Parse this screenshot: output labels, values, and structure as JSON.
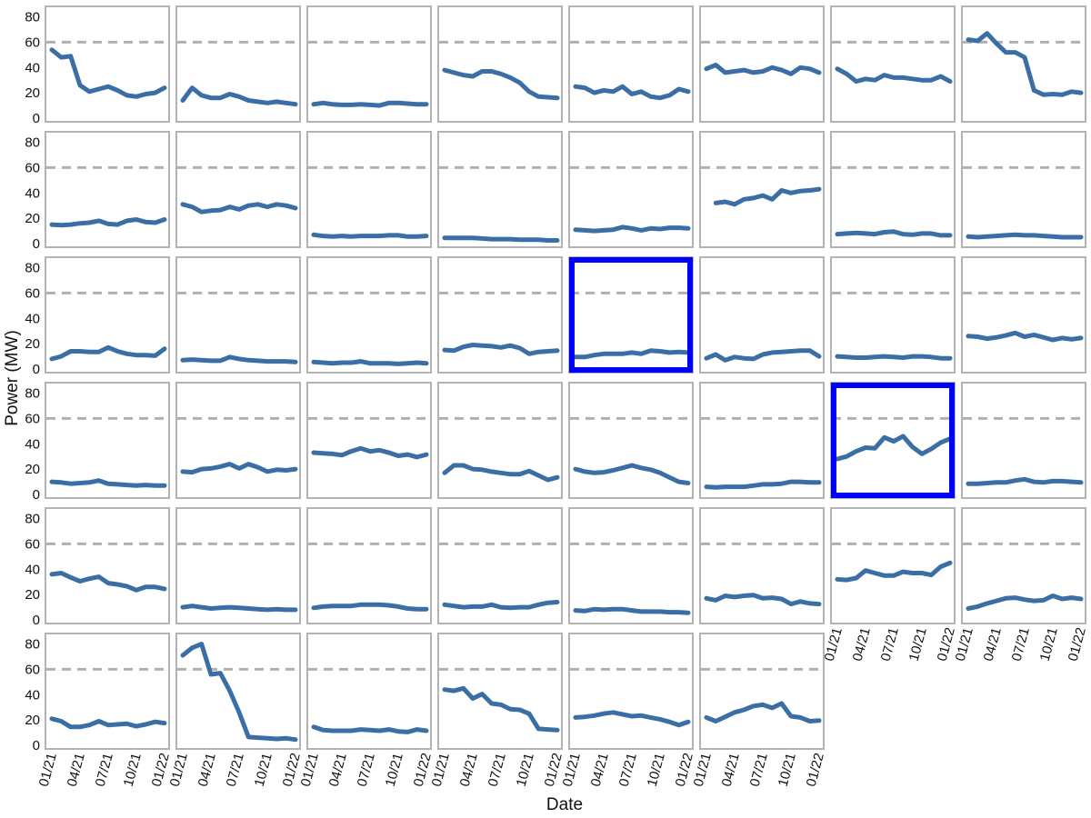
{
  "chart_data": {
    "type": "line",
    "layout": "small-multiples",
    "xlabel": "Date",
    "ylabel": "Power (MW)",
    "x": [
      "01/21",
      "02/21",
      "03/21",
      "04/21",
      "05/21",
      "06/21",
      "07/21",
      "08/21",
      "09/21",
      "10/21",
      "11/21",
      "12/21",
      "01/22"
    ],
    "x_ticks": [
      "01/21",
      "04/21",
      "07/21",
      "10/21",
      "01/22"
    ],
    "y_ticks": [
      0,
      20,
      40,
      60,
      80
    ],
    "ylim": [
      0,
      84
    ],
    "reference_line": {
      "value": 60,
      "style": "dashed",
      "color": "#b0b0b0"
    },
    "colors": {
      "line": "#3a6ea5",
      "panel_border": "#b3b3b3",
      "highlight": "#0000ff"
    },
    "highlighted_panels": [
      20,
      30
    ],
    "panels": [
      [
        54,
        48,
        49,
        26,
        21,
        23,
        25,
        22,
        18,
        17,
        19,
        20,
        24
      ],
      [
        14,
        24,
        18,
        16,
        16,
        19,
        17,
        14,
        13,
        12,
        13,
        12,
        11
      ],
      [
        11,
        12,
        11,
        10.5,
        10.5,
        11,
        10.5,
        10,
        12,
        12,
        11.5,
        11,
        11
      ],
      [
        38,
        36,
        34,
        33,
        37,
        37,
        35,
        32,
        28,
        21,
        17,
        16.5,
        16
      ],
      [
        25,
        24,
        20,
        22,
        21,
        25,
        19,
        21,
        17,
        16,
        18,
        23,
        21
      ],
      [
        39,
        42,
        36,
        37,
        38,
        36,
        37,
        40,
        38,
        35,
        40,
        39,
        36
      ],
      [
        39,
        35,
        29,
        31,
        30,
        34,
        32,
        32,
        31,
        30,
        30,
        33,
        29
      ],
      [
        62,
        61,
        67,
        59,
        52,
        52,
        48,
        22,
        18.5,
        19,
        18.5,
        21,
        20
      ],
      [
        15,
        14.5,
        15,
        16,
        16.5,
        18,
        15.5,
        15,
        18,
        19,
        17,
        16.5,
        19
      ],
      [
        31,
        29,
        25,
        26,
        26.5,
        29,
        27,
        30,
        31,
        29,
        31,
        30,
        28
      ],
      [
        7,
        6,
        5.5,
        6,
        5.5,
        6,
        6,
        6,
        6.5,
        6.5,
        5.5,
        5.5,
        6
      ],
      [
        4.5,
        4.5,
        4.5,
        4.5,
        4,
        3.5,
        3.5,
        3.5,
        3,
        3,
        3,
        2.5,
        2.5
      ],
      [
        11,
        10.5,
        10,
        10.5,
        11,
        13,
        12,
        10.5,
        12,
        11.5,
        12.5,
        12.5,
        12
      ],
      [
        null,
        32,
        33,
        31,
        35,
        36,
        38,
        35,
        42,
        40,
        41.5,
        42,
        43
      ],
      [
        7.5,
        8,
        8.5,
        8,
        7.5,
        9,
        9.5,
        7.5,
        7,
        8,
        8,
        6.5,
        6.5
      ],
      [
        5.5,
        5,
        5.5,
        6,
        6.5,
        7,
        6.5,
        6.5,
        6,
        5.5,
        5,
        5,
        5
      ],
      [
        8,
        10,
        14,
        14,
        13.5,
        13.5,
        17,
        14,
        12,
        11,
        11,
        10.5,
        16
      ],
      [
        7,
        7.5,
        7,
        6.5,
        6.5,
        9.5,
        8,
        7,
        6.5,
        6,
        6,
        6,
        5.5
      ],
      [
        5.5,
        5,
        4.5,
        5,
        5,
        6,
        4.5,
        4.5,
        4.5,
        4,
        4.5,
        5,
        4.5
      ],
      [
        15,
        14.5,
        17.5,
        19,
        18.5,
        18,
        17,
        18.5,
        16.5,
        12,
        13.5,
        14,
        14.5
      ],
      [
        9.5,
        9.5,
        11,
        12,
        12,
        12,
        13,
        12,
        14.5,
        14,
        13,
        13.5,
        13
      ],
      [
        8.5,
        11.5,
        7,
        9.5,
        8.5,
        8,
        11.5,
        13,
        13.5,
        14,
        14.5,
        14.5,
        10
      ],
      [
        10,
        9.5,
        9,
        9,
        9.5,
        10,
        9.5,
        9,
        10,
        10,
        9.5,
        8.5,
        8.5
      ],
      [
        26,
        25.5,
        24,
        25,
        26.5,
        28.5,
        25.5,
        27,
        25,
        23,
        24.5,
        23.5,
        24.5
      ],
      [
        10,
        9.5,
        8.5,
        9,
        9.5,
        11,
        8.5,
        8,
        7.5,
        7,
        7.5,
        7,
        7
      ],
      [
        18,
        17.5,
        20,
        20.5,
        22,
        24,
        20.5,
        24,
        21.5,
        18,
        19.5,
        19,
        20
      ],
      [
        33,
        32.5,
        32,
        31,
        34,
        36.5,
        34,
        35,
        33,
        30.5,
        31.5,
        29.5,
        31.5
      ],
      [
        17,
        23,
        23,
        20,
        19.5,
        18,
        17,
        16,
        16,
        18.5,
        15,
        11.5,
        13.5
      ],
      [
        20,
        18,
        17,
        17.5,
        19,
        21,
        23,
        21,
        19.5,
        17,
        13.5,
        10,
        9
      ],
      [
        6,
        5.5,
        6,
        6,
        6,
        7,
        8,
        8,
        8.5,
        10,
        10,
        9.5,
        9.5
      ],
      [
        28,
        30,
        34,
        37,
        36.5,
        45,
        42,
        46,
        37.5,
        32,
        36,
        41,
        44
      ],
      [
        8.5,
        8.5,
        9,
        9.5,
        9.5,
        11,
        12,
        10,
        9.5,
        10.5,
        10.5,
        10,
        9.5
      ],
      [
        36,
        37,
        33.5,
        30.5,
        32.5,
        34,
        29,
        28,
        26.5,
        23.5,
        26,
        26,
        24.5
      ],
      [
        10,
        11,
        10,
        9,
        9.5,
        10,
        9.5,
        9,
        8.5,
        8,
        8.5,
        8,
        8
      ],
      [
        9.5,
        10.5,
        11,
        11,
        11,
        12,
        12,
        12,
        11.5,
        10.5,
        9,
        8.5,
        8.5
      ],
      [
        12,
        11,
        10,
        10.5,
        10.5,
        12,
        10,
        9.5,
        10,
        10,
        12,
        13.5,
        14
      ],
      [
        7.5,
        7,
        8.5,
        8,
        8.5,
        8.5,
        7.5,
        6.5,
        6.5,
        6.5,
        6,
        6,
        5.5
      ],
      [
        17,
        15.5,
        19,
        18,
        19,
        19.5,
        17,
        17.5,
        16.5,
        12.5,
        14.5,
        13,
        12.5
      ],
      [
        32,
        31.5,
        33,
        39,
        37,
        35,
        35,
        38,
        37,
        37,
        35.5,
        42,
        45
      ],
      [
        9,
        10.5,
        13,
        15,
        17,
        17.5,
        16,
        15,
        15.5,
        19,
        16.5,
        17.5,
        16.5
      ],
      [
        21,
        19,
        14.5,
        14.5,
        16,
        19,
        16,
        16.5,
        17,
        15,
        16.5,
        18.5,
        17.5
      ],
      [
        71,
        77,
        80,
        56,
        57,
        43,
        26,
        6.5,
        6,
        5.5,
        5,
        5.5,
        4.5
      ],
      [
        14.5,
        12,
        11.5,
        11.5,
        11.5,
        12.5,
        12,
        11.5,
        12.5,
        11,
        10.5,
        12.5,
        11.5
      ],
      [
        44,
        43,
        45,
        37,
        40.5,
        33,
        32,
        28.5,
        28,
        25,
        13,
        12.5,
        12
      ],
      [
        22,
        22.5,
        23.5,
        25,
        26,
        24.5,
        23,
        23.5,
        22,
        20.5,
        18.5,
        16,
        18.5
      ],
      [
        22,
        19,
        22.5,
        26,
        28,
        31,
        32,
        29.5,
        33,
        23,
        22,
        19,
        19.5
      ]
    ]
  }
}
